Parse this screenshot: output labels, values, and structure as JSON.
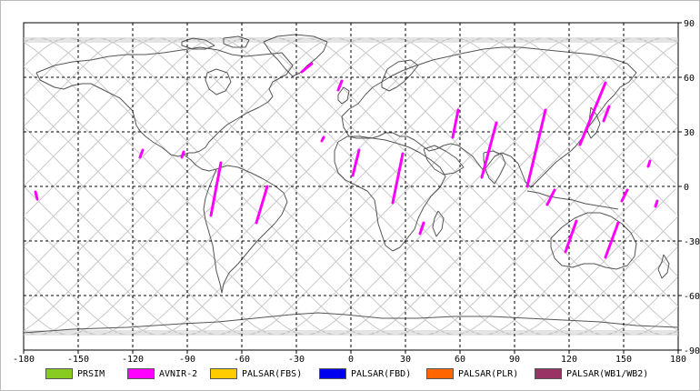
{
  "map": {
    "lon_range": [
      -180,
      180
    ],
    "lat_range": [
      -90,
      90
    ],
    "x_ticks": [
      "-180",
      "-150",
      "-120",
      "-90",
      "-60",
      "-30",
      "0",
      "30",
      "60",
      "90",
      "120",
      "150",
      "180"
    ],
    "y_ticks": [
      {
        "lat": 90,
        "label": "90"
      },
      {
        "lat": 60,
        "label": "60"
      },
      {
        "lat": 30,
        "label": "30"
      },
      {
        "lat": 0,
        "label": "0"
      },
      {
        "lat": -30,
        "label": "-30"
      },
      {
        "lat": -60,
        "label": "-60"
      },
      {
        "lat": -90,
        "label": "-90"
      }
    ],
    "grid": true,
    "colors": {
      "coastline": "#555555",
      "orbit_track": "#c8c8c8",
      "grid": "#000000",
      "observation": "#ff00ff"
    },
    "orbit_max_lat": 81.5,
    "orbit_track_count": 22,
    "observation_swaths": [
      {
        "lon1": -173.5,
        "lat1": -3,
        "lon2": -172.5,
        "lat2": -7
      },
      {
        "lon1": -114.5,
        "lat1": 20,
        "lon2": -116,
        "lat2": 16
      },
      {
        "lon1": -92,
        "lat1": 19,
        "lon2": -93,
        "lat2": 16
      },
      {
        "lon1": -71.5,
        "lat1": 13,
        "lon2": -77,
        "lat2": -16
      },
      {
        "lon1": -46,
        "lat1": 0,
        "lon2": -52,
        "lat2": -20
      },
      {
        "lon1": -21.5,
        "lat1": 67.5,
        "lon2": -27,
        "lat2": 63
      },
      {
        "lon1": -5,
        "lat1": 58,
        "lon2": -7,
        "lat2": 53
      },
      {
        "lon1": -15,
        "lat1": 27,
        "lon2": -16,
        "lat2": 25
      },
      {
        "lon1": 4.5,
        "lat1": 20,
        "lon2": 1,
        "lat2": 6
      },
      {
        "lon1": 28.5,
        "lat1": 18,
        "lon2": 23,
        "lat2": -9
      },
      {
        "lon1": 40,
        "lat1": -20,
        "lon2": 38,
        "lat2": -26
      },
      {
        "lon1": 59,
        "lat1": 42,
        "lon2": 56,
        "lat2": 27
      },
      {
        "lon1": 80,
        "lat1": 35,
        "lon2": 72,
        "lat2": 5
      },
      {
        "lon1": 107,
        "lat1": 42,
        "lon2": 97,
        "lat2": 0
      },
      {
        "lon1": 112,
        "lat1": -2,
        "lon2": 108,
        "lat2": -10
      },
      {
        "lon1": 124,
        "lat1": -19,
        "lon2": 118,
        "lat2": -36
      },
      {
        "lon1": 140,
        "lat1": 57,
        "lon2": 126,
        "lat2": 23
      },
      {
        "lon1": 147,
        "lat1": -20,
        "lon2": 140,
        "lat2": -39
      },
      {
        "lon1": 152,
        "lat1": -2,
        "lon2": 149,
        "lat2": -8
      },
      {
        "lon1": 164.5,
        "lat1": 14,
        "lon2": 163.5,
        "lat2": 11
      },
      {
        "lon1": 168.5,
        "lat1": -8,
        "lon2": 167.5,
        "lat2": -11
      },
      {
        "lon1": 142,
        "lat1": 44,
        "lon2": 139,
        "lat2": 36
      }
    ]
  },
  "legend": [
    {
      "label": "PRSIM",
      "color": "#88cc22"
    },
    {
      "label": "AVNIR-2",
      "color": "#ff00ff"
    },
    {
      "label": "PALSAR(FBS)",
      "color": "#ffcc00"
    },
    {
      "label": "PALSAR(FBD)",
      "color": "#0000ee"
    },
    {
      "label": "PALSAR(PLR)",
      "color": "#ff6600"
    },
    {
      "label": "PALSAR(WB1/WB2)",
      "color": "#993366"
    }
  ]
}
